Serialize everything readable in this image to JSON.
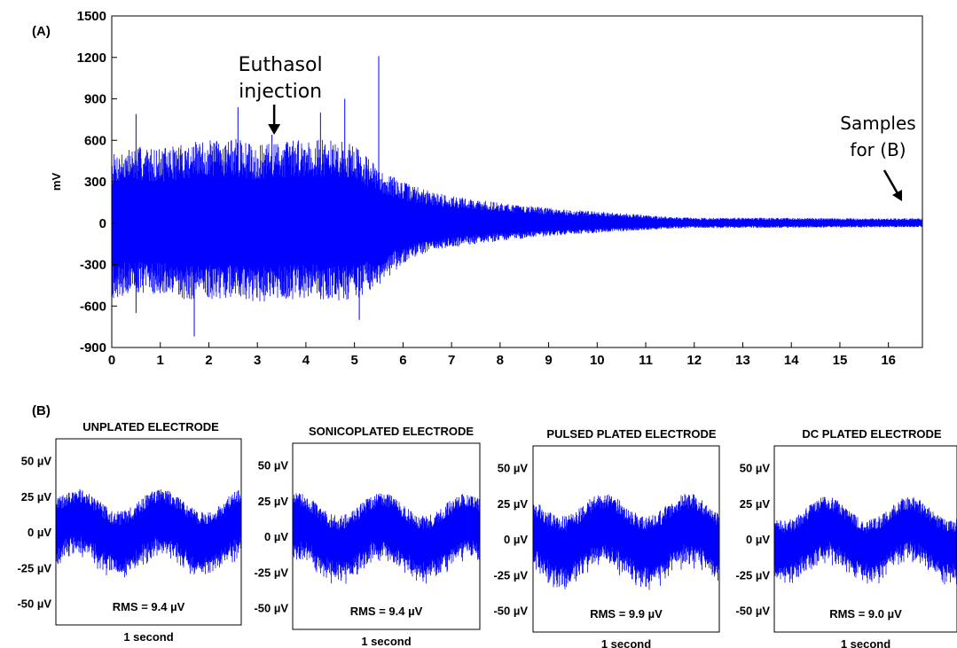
{
  "chart_data": [
    {
      "type": "line",
      "panel_label": "(A)",
      "ylabel": "mV",
      "xlim": [
        0,
        16.7
      ],
      "ylim": [
        -900,
        1500
      ],
      "xticks": [
        0,
        1,
        2,
        3,
        4,
        5,
        6,
        7,
        8,
        9,
        10,
        11,
        12,
        13,
        14,
        15,
        16
      ],
      "yticks": [
        -900,
        -600,
        -300,
        0,
        300,
        600,
        900,
        1200,
        1500
      ],
      "color": "#0000ff",
      "envelope": {
        "x": [
          0,
          0.5,
          1,
          1.5,
          2,
          2.5,
          3,
          3.5,
          4,
          4.5,
          5,
          5.5,
          6,
          6.5,
          7,
          7.5,
          8,
          8.5,
          9,
          9.5,
          10,
          10.5,
          11,
          11.5,
          12,
          13,
          14,
          15,
          16,
          16.7
        ],
        "upper": [
          500,
          560,
          540,
          580,
          600,
          620,
          560,
          600,
          620,
          600,
          580,
          400,
          300,
          240,
          200,
          170,
          150,
          130,
          110,
          95,
          85,
          75,
          60,
          45,
          40,
          40,
          38,
          36,
          35,
          35
        ],
        "lower": [
          -550,
          -500,
          -520,
          -560,
          -550,
          -540,
          -580,
          -560,
          -540,
          -560,
          -560,
          -450,
          -300,
          -220,
          -180,
          -150,
          -130,
          -110,
          -95,
          -80,
          -70,
          -60,
          -50,
          -40,
          -35,
          -35,
          -33,
          -32,
          -30,
          -30
        ]
      },
      "spikes": [
        {
          "x": 0.5,
          "y": 790
        },
        {
          "x": 0.5,
          "y": -650
        },
        {
          "x": 1.7,
          "y": -820
        },
        {
          "x": 2.6,
          "y": 840
        },
        {
          "x": 3.3,
          "y": 640
        },
        {
          "x": 4.3,
          "y": 800
        },
        {
          "x": 4.8,
          "y": 900
        },
        {
          "x": 5.1,
          "y": -700
        },
        {
          "x": 5.5,
          "y": 1210
        }
      ],
      "annotations": [
        {
          "text": "Euthasol injection",
          "x": 3.2,
          "y": 650
        },
        {
          "text": "Samples for (B)",
          "x": 16.4,
          "y": 60
        }
      ]
    },
    {
      "type": "line",
      "panel_label": "(B)",
      "xlabel": "1 second",
      "ylim": [
        -60,
        60
      ],
      "yticks": [
        "50 µV",
        "25 µV",
        "0 µV",
        "-25 µV",
        "-50 µV"
      ],
      "color": "#0000ff",
      "series": [
        {
          "name": "UNPLATED  ELECTRODE",
          "rms": "RMS = 9.4 µV",
          "amplitude": 30
        },
        {
          "name": "SONICOPLATED ELECTRODE",
          "rms": "RMS = 9.4 µV",
          "amplitude": 30
        },
        {
          "name": "PULSED PLATED ELECTRODE",
          "rms": "RMS = 9.9 µV",
          "amplitude": 32
        },
        {
          "name": "DC PLATED ELECTRODE",
          "rms": "RMS = 9.0 µV",
          "amplitude": 29
        }
      ]
    }
  ]
}
